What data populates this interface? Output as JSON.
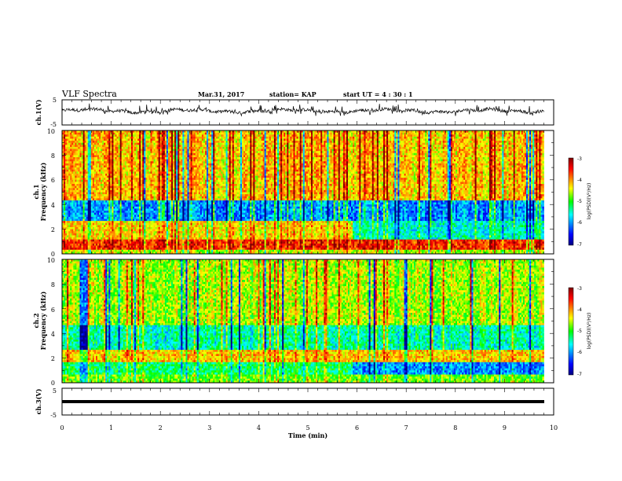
{
  "header": {
    "title": "VLF Spectra",
    "date": "Mar.31, 2017",
    "station": "station= KAP",
    "start": "start  UT =   4 : 30 : 1"
  },
  "colors": {
    "waveform": "#000000",
    "colormap": [
      "#00007f",
      "#0000ff",
      "#00ffff",
      "#00ff00",
      "#ffff00",
      "#ff0000",
      "#7f0000"
    ]
  },
  "chart_data": [
    {
      "type": "line",
      "panel": "ch1-waveform",
      "ylabel": "ch.1(V)",
      "ylim": [
        -5,
        5
      ],
      "yticks": [
        "5",
        "-5"
      ],
      "xlim": [
        0,
        10
      ],
      "x_range_data": [
        0,
        9.8
      ],
      "description_values": "noisy waveform around ~0.5 V, amplitude ±1.5 V"
    },
    {
      "type": "heatmap",
      "panel": "ch1-spectrogram",
      "ylabel": "Frequency  (kHz)",
      "sublabel": "ch.1",
      "ylim": [
        0,
        10
      ],
      "yticks": [
        "0",
        "2",
        "4",
        "6",
        "8",
        "10"
      ],
      "xlim": [
        0,
        10
      ],
      "colorbar": {
        "label": "log(PSD)(V²/Hz)",
        "range": [
          -7,
          -3
        ],
        "ticks": [
          "-3",
          "-4",
          "-5",
          "-6",
          "-7"
        ]
      },
      "bands_log_psd": [
        {
          "fmin": 0.0,
          "fmax": 0.4,
          "value": -4.6
        },
        {
          "fmin": 0.4,
          "fmax": 1.2,
          "value": -3.6
        },
        {
          "fmin": 1.2,
          "fmax": 2.6,
          "value": -4.3
        },
        {
          "fmin": 2.6,
          "fmax": 4.4,
          "value": -6.0
        },
        {
          "fmin": 4.4,
          "fmax": 10.0,
          "value": -4.2
        }
      ]
    },
    {
      "type": "heatmap",
      "panel": "ch2-spectrogram",
      "ylabel": "Frequency  (kHz)",
      "sublabel": "ch.2",
      "ylim": [
        0,
        10
      ],
      "yticks": [
        "0",
        "2",
        "4",
        "6",
        "8",
        "10"
      ],
      "xlim": [
        0,
        10
      ],
      "colorbar": {
        "label": "log(PSD)(V²/Hz)",
        "range": [
          -7,
          -3
        ],
        "ticks": [
          "-3",
          "-4",
          "-5",
          "-6",
          "-7"
        ]
      },
      "bands_log_psd": [
        {
          "fmin": 0.0,
          "fmax": 0.6,
          "value": -4.8
        },
        {
          "fmin": 0.6,
          "fmax": 1.6,
          "value": -5.2
        },
        {
          "fmin": 1.6,
          "fmax": 2.6,
          "value": -4.2
        },
        {
          "fmin": 2.6,
          "fmax": 4.6,
          "value": -5.4
        },
        {
          "fmin": 4.6,
          "fmax": 10.0,
          "value": -4.6
        }
      ]
    },
    {
      "type": "line",
      "panel": "ch3-waveform",
      "ylabel": "ch.3(V)",
      "ylim": [
        -5,
        5
      ],
      "yticks": [
        "5",
        "-5"
      ],
      "xlim": [
        0,
        10
      ],
      "constant_value": 0,
      "xlabel": "Time  (min)",
      "xticks": [
        "0",
        "1",
        "2",
        "3",
        "4",
        "5",
        "6",
        "7",
        "8",
        "9",
        "10"
      ]
    }
  ]
}
